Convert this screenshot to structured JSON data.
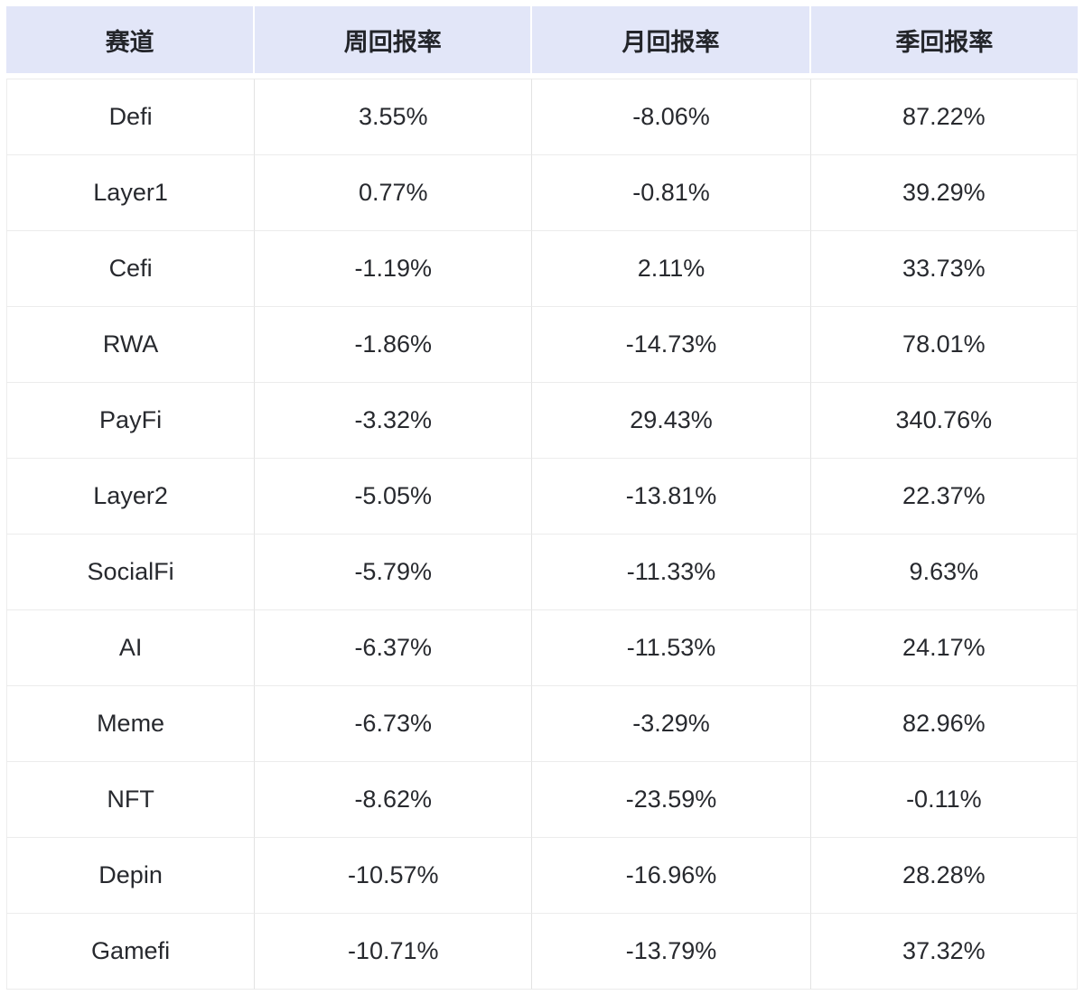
{
  "chart_data": {
    "type": "table",
    "columns": [
      "赛道",
      "周回报率",
      "月回报率",
      "季回报率"
    ],
    "rows": [
      {
        "sector": "Defi",
        "weekly": "3.55%",
        "monthly": "-8.06%",
        "quarterly": "87.22%"
      },
      {
        "sector": "Layer1",
        "weekly": "0.77%",
        "monthly": "-0.81%",
        "quarterly": "39.29%"
      },
      {
        "sector": "Cefi",
        "weekly": "-1.19%",
        "monthly": "2.11%",
        "quarterly": "33.73%"
      },
      {
        "sector": "RWA",
        "weekly": "-1.86%",
        "monthly": "-14.73%",
        "quarterly": "78.01%"
      },
      {
        "sector": "PayFi",
        "weekly": "-3.32%",
        "monthly": "29.43%",
        "quarterly": "340.76%"
      },
      {
        "sector": "Layer2",
        "weekly": "-5.05%",
        "monthly": "-13.81%",
        "quarterly": "22.37%"
      },
      {
        "sector": "SocialFi",
        "weekly": "-5.79%",
        "monthly": "-11.33%",
        "quarterly": "9.63%"
      },
      {
        "sector": "AI",
        "weekly": "-6.37%",
        "monthly": "-11.53%",
        "quarterly": "24.17%"
      },
      {
        "sector": "Meme",
        "weekly": "-6.73%",
        "monthly": "-3.29%",
        "quarterly": "82.96%"
      },
      {
        "sector": "NFT",
        "weekly": "-8.62%",
        "monthly": "-23.59%",
        "quarterly": "-0.11%"
      },
      {
        "sector": "Depin",
        "weekly": "-10.57%",
        "monthly": "-16.96%",
        "quarterly": "28.28%"
      },
      {
        "sector": "Gamefi",
        "weekly": "-10.71%",
        "monthly": "-13.79%",
        "quarterly": "37.32%"
      }
    ],
    "layout": {
      "legend": "none",
      "grid": "cell-borders"
    }
  },
  "colors": {
    "header_bg": "#e2e6f8",
    "row_bg": "#ffffff",
    "border_horizontal": "#ececec",
    "border_vertical": "#e3e3e3",
    "header_text": "#23252a",
    "cell_text": "#27292e"
  }
}
